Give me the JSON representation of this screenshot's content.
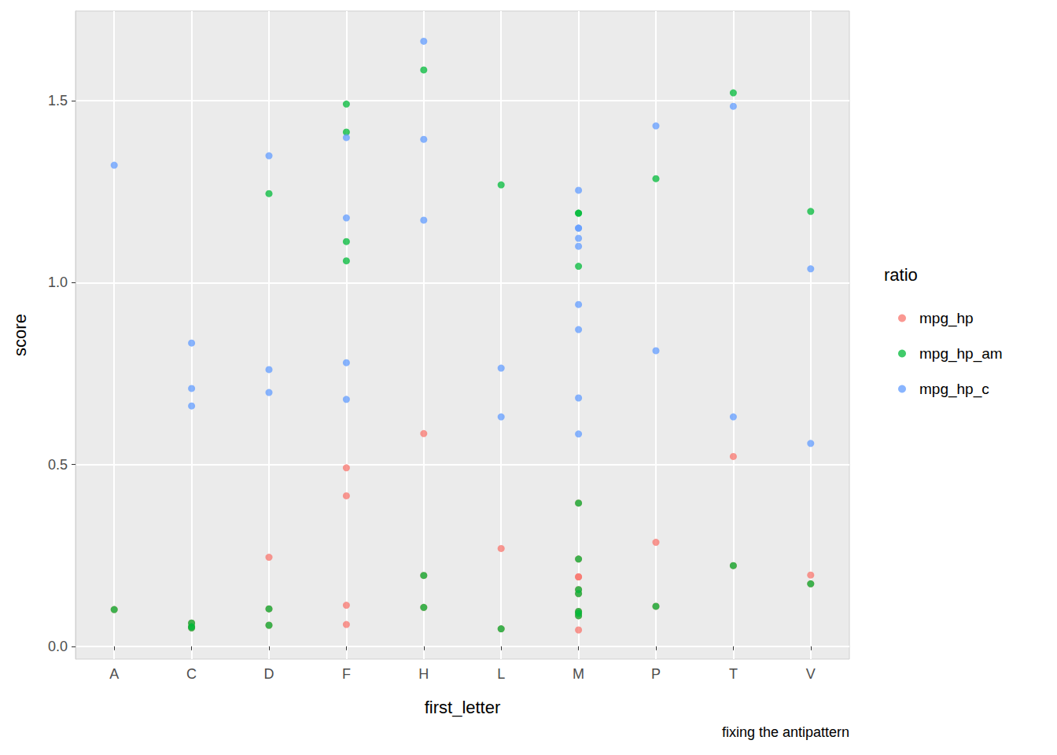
{
  "chart_data": {
    "type": "scatter",
    "x_label": "first_letter",
    "y_label": "score",
    "legend_title": "ratio",
    "caption": "fixing the antipattern",
    "legend": "right",
    "grid": true,
    "categories": [
      "A",
      "C",
      "D",
      "F",
      "H",
      "L",
      "M",
      "P",
      "T",
      "V"
    ],
    "ylim": [
      -0.035,
      1.747
    ],
    "yticks": [
      {
        "value": 0,
        "label": "0.0"
      },
      {
        "value": 0.5,
        "label": "0.5"
      },
      {
        "value": 1,
        "label": "1.0"
      },
      {
        "value": 1.5,
        "label": "1.5"
      }
    ],
    "series": [
      {
        "name": "mpg_hp",
        "color": "#F8766D",
        "x": [
          "A",
          "C",
          "C",
          "C",
          "D",
          "D",
          "D",
          "F",
          "F",
          "F",
          "F",
          "H",
          "H",
          "H",
          "L",
          "L",
          "M",
          "M",
          "M",
          "M",
          "M",
          "M",
          "M",
          "M",
          "M",
          "M",
          "P",
          "P",
          "T",
          "T",
          "V",
          "V"
        ],
        "values": [
          0.101,
          0.051,
          0.054,
          0.064,
          0.245,
          0.103,
          0.058,
          0.113,
          0.491,
          0.414,
          0.06,
          0.585,
          0.195,
          0.107,
          0.048,
          0.269,
          0.045,
          0.191,
          0.191,
          0.24,
          0.394,
          0.156,
          0.145,
          0.091,
          0.096,
          0.084,
          0.11,
          0.286,
          0.522,
          0.222,
          0.172,
          0.196
        ]
      },
      {
        "name": "mpg_hp_am",
        "color": "#00BA38",
        "x": [
          "A",
          "C",
          "C",
          "C",
          "D",
          "D",
          "D",
          "F",
          "F",
          "F",
          "F",
          "H",
          "H",
          "H",
          "L",
          "L",
          "M",
          "M",
          "M",
          "M",
          "M",
          "M",
          "M",
          "M",
          "M",
          "M",
          "P",
          "P",
          "T",
          "T",
          "V",
          "V"
        ],
        "values": [
          0.101,
          0.051,
          0.054,
          0.064,
          1.245,
          0.103,
          0.058,
          1.113,
          1.491,
          1.414,
          1.06,
          1.585,
          0.195,
          0.107,
          0.048,
          1.269,
          1.045,
          1.191,
          1.191,
          0.24,
          0.394,
          0.156,
          0.145,
          0.091,
          0.096,
          0.084,
          0.11,
          1.286,
          1.522,
          0.222,
          0.172,
          1.196
        ]
      },
      {
        "name": "mpg_hp_c",
        "color": "#619CFF",
        "x": [
          "A",
          "C",
          "C",
          "C",
          "D",
          "D",
          "D",
          "F",
          "F",
          "F",
          "F",
          "H",
          "H",
          "H",
          "L",
          "L",
          "M",
          "M",
          "M",
          "M",
          "M",
          "M",
          "M",
          "M",
          "M",
          "P",
          "P",
          "T",
          "T",
          "V",
          "V"
        ],
        "values": [
          1.323,
          0.834,
          0.709,
          0.661,
          1.349,
          0.761,
          0.698,
          1.399,
          1.178,
          0.78,
          0.679,
          1.664,
          1.394,
          1.172,
          0.765,
          0.631,
          1.254,
          1.15,
          1.15,
          1.122,
          1.1,
          0.94,
          0.871,
          0.683,
          0.584,
          1.431,
          0.813,
          1.485,
          0.631,
          1.038,
          0.558
        ]
      }
    ]
  }
}
